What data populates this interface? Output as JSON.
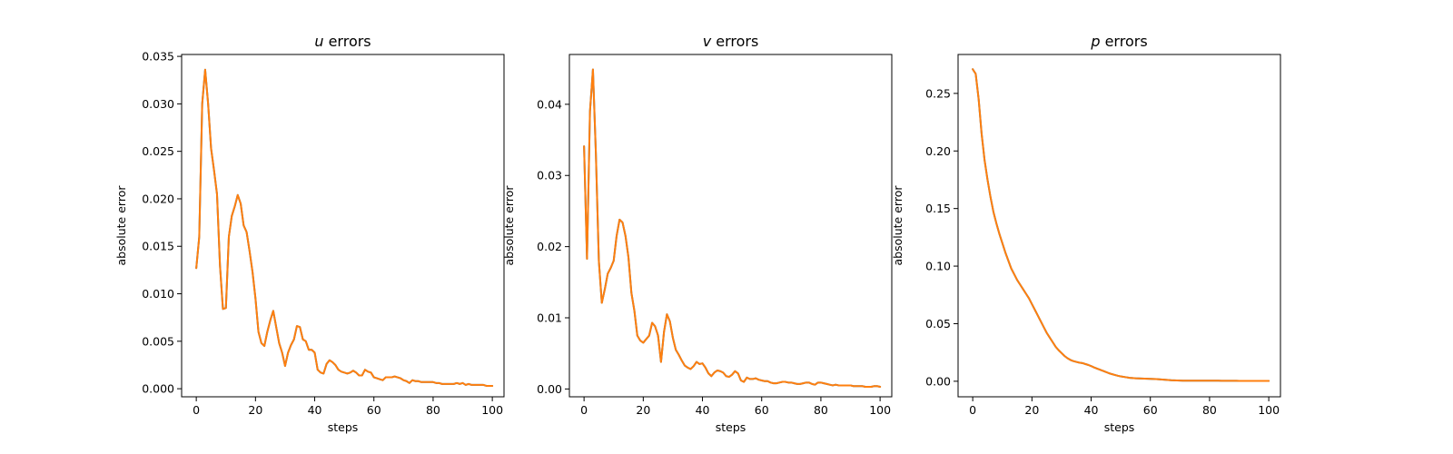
{
  "figure": {
    "colors": {
      "series_under": "#1f77b4",
      "series_over": "#ff7f0e"
    }
  },
  "chart_data": [
    {
      "type": "line",
      "title_var": "u",
      "title_rest": " errors",
      "xlabel": "steps",
      "ylabel": "absolute error",
      "xlim": [
        -4.95,
        103.95
      ],
      "ylim": [
        -0.00085,
        0.0352
      ],
      "xticks": [
        0,
        20,
        40,
        60,
        80,
        100
      ],
      "yticks": [
        0.0,
        0.005,
        0.01,
        0.015,
        0.02,
        0.025,
        0.03,
        0.035
      ],
      "ytick_labels": [
        "0.000",
        "0.005",
        "0.010",
        "0.015",
        "0.020",
        "0.025",
        "0.030",
        "0.035"
      ],
      "grid": false,
      "series_values": [
        0.0127,
        0.016,
        0.03,
        0.0336,
        0.03,
        0.0253,
        0.023,
        0.0205,
        0.013,
        0.0084,
        0.0085,
        0.016,
        0.0182,
        0.0192,
        0.0204,
        0.0195,
        0.0172,
        0.0165,
        0.0145,
        0.0123,
        0.0095,
        0.006,
        0.0048,
        0.0045,
        0.006,
        0.0072,
        0.0082,
        0.0065,
        0.0048,
        0.0038,
        0.0024,
        0.0038,
        0.0046,
        0.0052,
        0.0066,
        0.0065,
        0.0052,
        0.005,
        0.0041,
        0.0041,
        0.0038,
        0.002,
        0.0017,
        0.0016,
        0.0026,
        0.003,
        0.0028,
        0.0025,
        0.002,
        0.0018,
        0.0017,
        0.0016,
        0.0017,
        0.0019,
        0.0017,
        0.0014,
        0.0014,
        0.002,
        0.0018,
        0.0017,
        0.0012,
        0.0011,
        0.001,
        0.0009,
        0.0012,
        0.0012,
        0.0012,
        0.0013,
        0.0012,
        0.0011,
        0.0009,
        0.0008,
        0.0006,
        0.0009,
        0.0008,
        0.0008,
        0.0007,
        0.0007,
        0.0007,
        0.0007,
        0.0007,
        0.0006,
        0.0006,
        0.0005,
        0.0005,
        0.0005,
        0.0005,
        0.0005,
        0.0006,
        0.0005,
        0.0006,
        0.0004,
        0.0005,
        0.0004,
        0.0004,
        0.0004,
        0.0004,
        0.0004,
        0.0003,
        0.0003,
        0.0003
      ]
    },
    {
      "type": "line",
      "title_var": "v",
      "title_rest": " errors",
      "xlabel": "steps",
      "ylabel": "absolute error",
      "xlim": [
        -4.95,
        103.95
      ],
      "ylim": [
        -0.0011,
        0.047
      ],
      "xticks": [
        0,
        20,
        40,
        60,
        80,
        100
      ],
      "yticks": [
        0.0,
        0.01,
        0.02,
        0.03,
        0.04
      ],
      "ytick_labels": [
        "0.00",
        "0.01",
        "0.02",
        "0.03",
        "0.04"
      ],
      "grid": false,
      "series_values": [
        0.0341,
        0.0183,
        0.039,
        0.0449,
        0.033,
        0.018,
        0.0121,
        0.014,
        0.0162,
        0.017,
        0.018,
        0.0215,
        0.0238,
        0.0234,
        0.0215,
        0.0185,
        0.0135,
        0.011,
        0.0075,
        0.0068,
        0.0065,
        0.007,
        0.0075,
        0.0093,
        0.0088,
        0.0075,
        0.0038,
        0.008,
        0.0105,
        0.0095,
        0.0072,
        0.0055,
        0.0048,
        0.004,
        0.0033,
        0.003,
        0.0028,
        0.0032,
        0.0038,
        0.0035,
        0.0036,
        0.003,
        0.0022,
        0.0018,
        0.0023,
        0.0026,
        0.0025,
        0.0023,
        0.0018,
        0.0017,
        0.002,
        0.0025,
        0.0022,
        0.0012,
        0.001,
        0.0016,
        0.0014,
        0.0014,
        0.0015,
        0.0013,
        0.0012,
        0.0011,
        0.0011,
        0.0009,
        0.0008,
        0.0008,
        0.0009,
        0.001,
        0.001,
        0.0009,
        0.0009,
        0.0008,
        0.0007,
        0.0007,
        0.0008,
        0.0009,
        0.0009,
        0.0007,
        0.0006,
        0.0009,
        0.0009,
        0.0008,
        0.0007,
        0.0006,
        0.0005,
        0.0006,
        0.0005,
        0.0005,
        0.0005,
        0.0005,
        0.0005,
        0.0004,
        0.0004,
        0.0004,
        0.0004,
        0.0003,
        0.0003,
        0.0003,
        0.0004,
        0.0004,
        0.0003
      ]
    },
    {
      "type": "line",
      "title_var": "p",
      "title_rest": " errors",
      "xlabel": "steps",
      "ylabel": "absolute error",
      "xlim": [
        -4.95,
        103.95
      ],
      "ylim": [
        -0.0135,
        0.2838
      ],
      "xticks": [
        0,
        20,
        40,
        60,
        80,
        100
      ],
      "yticks": [
        0.0,
        0.05,
        0.1,
        0.15,
        0.2,
        0.25
      ],
      "ytick_labels": [
        "0.00",
        "0.05",
        "0.10",
        "0.15",
        "0.20",
        "0.25"
      ],
      "grid": false,
      "series_values": [
        0.271,
        0.267,
        0.245,
        0.215,
        0.192,
        0.175,
        0.16,
        0.147,
        0.137,
        0.128,
        0.12,
        0.112,
        0.105,
        0.098,
        0.093,
        0.088,
        0.084,
        0.08,
        0.076,
        0.072,
        0.067,
        0.062,
        0.057,
        0.052,
        0.047,
        0.042,
        0.038,
        0.034,
        0.03,
        0.027,
        0.0245,
        0.022,
        0.02,
        0.0185,
        0.0175,
        0.0168,
        0.0162,
        0.0158,
        0.015,
        0.0142,
        0.0132,
        0.012,
        0.011,
        0.01,
        0.009,
        0.008,
        0.007,
        0.0062,
        0.0055,
        0.0048,
        0.0042,
        0.0038,
        0.0034,
        0.003,
        0.0028,
        0.0026,
        0.0025,
        0.0024,
        0.0023,
        0.0022,
        0.0021,
        0.002,
        0.0019,
        0.0017,
        0.0015,
        0.0013,
        0.0011,
        0.0009,
        0.0008,
        0.0007,
        0.0006,
        0.0005,
        0.0005,
        0.0005,
        0.0005,
        0.0005,
        0.0005,
        0.0005,
        0.0005,
        0.0005,
        0.0005,
        0.0005,
        0.0005,
        0.0005,
        0.0004,
        0.0004,
        0.0004,
        0.0004,
        0.0004,
        0.0004,
        0.0003,
        0.0003,
        0.0003,
        0.0003,
        0.0003,
        0.0003,
        0.0003,
        0.0003,
        0.0003,
        0.0003,
        0.0003
      ]
    }
  ]
}
